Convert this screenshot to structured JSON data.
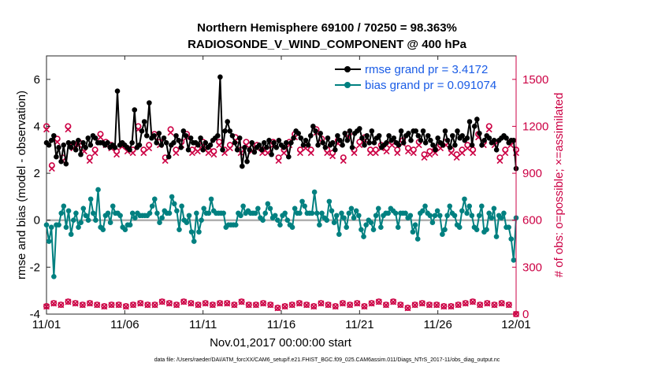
{
  "chart_data": {
    "type": "line",
    "title": "Northern Hemisphere 69100 / 70250 = 98.363%",
    "subtitle": "RADIOSONDE_V_WIND_COMPONENT @ 400 hPa",
    "xlabel": "Nov.01,2017 00:00:00 start",
    "ylabel_left": "rmse and bias (model - observation)",
    "ylabel_right": "# of obs: o=possible; ×=assimilated",
    "footnote": "data file: /Users/raeder/DAI/ATM_forcXX/CAM6_setup/f.e21.FHIST_BGC.f09_025.CAM6assim.011/Diags_NTrS_2017-11/obs_diag_output.nc",
    "xlim": [
      0,
      30
    ],
    "ylim_left": [
      -4,
      7
    ],
    "ylim_right": [
      0,
      1650
    ],
    "x_tick_positions": [
      0,
      5,
      10,
      15,
      20,
      25,
      30
    ],
    "x_tick_labels": [
      "11/01",
      "11/06",
      "11/11",
      "11/16",
      "11/21",
      "11/26",
      "12/01"
    ],
    "y_left_ticks": [
      -4,
      -2,
      0,
      2,
      4,
      6
    ],
    "y_right_ticks": [
      0,
      300,
      600,
      900,
      1200,
      1500
    ],
    "zero_line": 0,
    "legend": [
      {
        "label": "rmse grand pr = 3.4172",
        "color": "#000000"
      },
      {
        "label": "bias grand pr = 0.091074",
        "color": "#008080"
      }
    ],
    "colors": {
      "rmse": "#000000",
      "bias": "#008080",
      "obs": "#cc0044",
      "zero": "#b0b0b0",
      "legend_text": "#1a5ce6"
    },
    "series": [
      {
        "name": "rmse",
        "axis": "left",
        "values": [
          3.3,
          3.2,
          3.4,
          3.6,
          2.7,
          3.1,
          2.5,
          3.2,
          2.4,
          3.3,
          3.1,
          3.3,
          3.0,
          3.4,
          2.8,
          3.3,
          3.1,
          3.5,
          3.2,
          3.6,
          3.5,
          3.3,
          3.3,
          3.3,
          3.2,
          3.3,
          3.1,
          3.2,
          3.1,
          5.5,
          3.2,
          3.3,
          3.2,
          3.1,
          3.0,
          3.3,
          4.7,
          3.1,
          3.2,
          3.8,
          4.2,
          3.6,
          5.0,
          3.5,
          3.6,
          3.3,
          3.7,
          3.2,
          3.5,
          3.3,
          2.7,
          3.2,
          3.3,
          3.6,
          3.4,
          3.1,
          3.8,
          3.6,
          3.0,
          3.5,
          3.3,
          3.3,
          3.2,
          3.5,
          3.0,
          3.3,
          3.1,
          3.2,
          3.4,
          3.5,
          3.6,
          6.1,
          3.0,
          3.8,
          4.2,
          3.8,
          3.6,
          3.3,
          3.0,
          3.5,
          2.3,
          3.1,
          2.5,
          3.0,
          3.3,
          2.9,
          3.1,
          3.2,
          3.0,
          3.3,
          3.1,
          3.4,
          2.8,
          3.3,
          3.1,
          3.4,
          3.2,
          3.1,
          3.3,
          2.7,
          3.3,
          3.5,
          3.8,
          3.7,
          3.5,
          3.2,
          3.4,
          3.2,
          3.6,
          4.0,
          3.8,
          3.2,
          3.7,
          3.3,
          3.1,
          3.5,
          3.2,
          3.3,
          3.0,
          3.6,
          3.4,
          3.2,
          3.7,
          3.4,
          3.8,
          3.1,
          3.7,
          3.8,
          3.9,
          3.5,
          3.2,
          3.6,
          3.3,
          3.8,
          3.3,
          3.5,
          3.6,
          3.1,
          3.2,
          3.3,
          3.6,
          3.4,
          3.5,
          3.3,
          3.2,
          3.8,
          3.3,
          3.6,
          3.7,
          3.4,
          3.8,
          3.8,
          3.6,
          3.4,
          3.8,
          3.3,
          3.6,
          3.4,
          3.2,
          3.0,
          3.5,
          3.3,
          3.2,
          3.8,
          3.4,
          3.1,
          3.6,
          3.2,
          3.8,
          3.5,
          3.6,
          3.4,
          3.5,
          4.2,
          3.2,
          4.0,
          4.3,
          3.7,
          3.2,
          3.4,
          3.6,
          3.5,
          3.3,
          3.4,
          3.0,
          3.4,
          3.5,
          3.6,
          3.5,
          3.3,
          3.4,
          3.4,
          2.2
        ]
      },
      {
        "name": "bias",
        "axis": "left",
        "values": [
          -0.2,
          -0.9,
          -0.3,
          -2.4,
          -0.2,
          -0.2,
          0.3,
          0.6,
          -0.3,
          0.4,
          -0.6,
          0.0,
          0.3,
          -0.3,
          -0.1,
          0.5,
          0.2,
          0.0,
          0.9,
          0.3,
          0.0,
          1.3,
          -0.3,
          -0.4,
          0.2,
          0.3,
          -0.1,
          0.6,
          0.3,
          0.3,
          0.2,
          -0.3,
          -0.4,
          -0.2,
          -0.2,
          0.3,
          0.1,
          0.3,
          0.2,
          0.2,
          0.2,
          0.2,
          0.3,
          0.6,
          0.9,
          0.3,
          -0.1,
          0.1,
          0.4,
          0.3,
          0.3,
          1.0,
          0.7,
          0.4,
          -0.4,
          0.6,
          0.0,
          -0.1,
          0.2,
          -0.5,
          -0.9,
          0.3,
          -0.5,
          0.0,
          0.5,
          0.3,
          0.3,
          0.9,
          0.4,
          0.3,
          0.3,
          0.3,
          0.3,
          -0.3,
          -0.2,
          -0.2,
          -0.2,
          -0.2,
          0.3,
          0.2,
          0.6,
          0.3,
          0.4,
          0.3,
          0.3,
          0.3,
          0.5,
          0.1,
          0.0,
          0.3,
          0.7,
          0.5,
          0.1,
          0.2,
          0.0,
          -0.2,
          0.2,
          0.3,
          0.0,
          -0.2,
          -0.3,
          0.5,
          0.3,
          0.3,
          0.8,
          0.6,
          0.3,
          0.3,
          0.3,
          1.2,
          0.3,
          -0.2,
          0.3,
          0.1,
          0.0,
          0.8,
          0.4,
          -0.1,
          0.2,
          -0.6,
          0.3,
          0.1,
          -0.3,
          0.3,
          0.5,
          0.1,
          0.4,
          0.2,
          -0.4,
          -0.7,
          -0.2,
          0.0,
          -0.1,
          -0.4,
          0.2,
          0.5,
          -0.3,
          0.2,
          0.3,
          0.3,
          0.5,
          0.4,
          0.3,
          -0.3,
          0.3,
          0.3,
          0.3,
          0.1,
          0.2,
          -0.5,
          -0.2,
          -0.8,
          0.3,
          0.4,
          0.6,
          0.3,
          0.2,
          -0.1,
          0.2,
          0.4,
          0.2,
          -0.6,
          -0.4,
          0.2,
          0.6,
          0.3,
          0.2,
          -0.2,
          -0.3,
          0.4,
          0.9,
          0.3,
          0.6,
          0.2,
          -0.3,
          -0.4,
          0.2,
          0.6,
          -0.5,
          -0.4,
          0.3,
          0.1,
          0.5,
          -0.7,
          0.2,
          0.1,
          0.3,
          -0.3,
          -0.3,
          -0.8,
          -1.7,
          0.1
        ]
      },
      {
        "name": "obs possible",
        "axis": "right",
        "marker": "o",
        "values": [
          1200,
          950,
          1120,
          1000,
          1200,
          1080,
          1100,
          1060,
          1000,
          1050,
          1150,
          1100,
          1080,
          1040,
          1090,
          1060,
          1050,
          1200,
          1050,
          1080,
          1150,
          1100,
          1000,
          1180,
          1050,
          1100,
          1150,
          1050,
          1060,
          1100,
          1050,
          1040,
          1100,
          1050,
          1080,
          1130,
          1050,
          1100,
          1060,
          1080,
          1050,
          1050,
          1100,
          1000,
          1050,
          1100,
          1150,
          1050,
          1080,
          1050,
          1180,
          1120,
          1050,
          1030,
          1110,
          1000,
          1150,
          1050,
          1100,
          1130,
          1050,
          1050,
          1080,
          1060,
          1100,
          1050,
          1110,
          1060,
          1050,
          1100,
          1020,
          1040,
          1050,
          1080,
          1100,
          1050,
          1020,
          1050,
          1080,
          1050,
          1150,
          1100,
          1200,
          1100,
          1000,
          1050,
          1100,
          1050
        ]
      },
      {
        "name": "obs assimilated",
        "axis": "right",
        "marker": "x",
        "values": [
          1180,
          930,
          1100,
          980,
          1180,
          1060,
          1080,
          1040,
          980,
          1030,
          1130,
          1080,
          1060,
          1020,
          1070,
          1040,
          1030,
          1180,
          1030,
          1060,
          1130,
          1080,
          980,
          1160,
          1030,
          1080,
          1130,
          1030,
          1040,
          1080,
          1030,
          1020,
          1080,
          1030,
          1060,
          1110,
          1030,
          1080,
          1040,
          1060,
          1030,
          1030,
          1080,
          980,
          1030,
          1080,
          1130,
          1030,
          1060,
          1030,
          1160,
          1100,
          1030,
          1010,
          1090,
          980,
          1130,
          1030,
          1080,
          1110,
          1030,
          1030,
          1060,
          1040,
          1080,
          1030,
          1090,
          1040,
          1030,
          1080,
          1000,
          1020,
          1030,
          1060,
          1080,
          1030,
          1000,
          1030,
          1060,
          1030,
          1130,
          1080,
          1180,
          1080,
          980,
          1030,
          1080,
          1030
        ]
      },
      {
        "name": "obs possible (low)",
        "axis": "right",
        "marker": "o",
        "values": [
          50,
          70,
          60,
          80,
          70,
          60,
          70,
          60,
          50,
          60,
          60,
          50,
          60,
          70,
          60,
          60,
          80,
          70,
          60,
          80,
          70,
          60,
          70,
          60,
          70,
          70,
          60,
          80,
          60,
          60,
          70,
          60,
          40,
          50,
          60,
          70,
          60,
          50,
          70,
          60,
          50,
          70,
          60,
          70,
          50,
          70,
          80,
          60,
          80,
          60,
          40,
          60,
          70,
          60,
          60,
          50,
          50,
          60,
          70,
          80,
          60,
          70,
          60,
          70,
          60,
          0
        ]
      },
      {
        "name": "obs assimilated (low)",
        "axis": "right",
        "marker": "x",
        "values": [
          48,
          68,
          58,
          78,
          68,
          58,
          68,
          58,
          48,
          58,
          58,
          48,
          58,
          68,
          58,
          58,
          78,
          68,
          58,
          78,
          68,
          58,
          68,
          58,
          68,
          68,
          58,
          78,
          58,
          58,
          68,
          58,
          38,
          48,
          58,
          68,
          58,
          48,
          68,
          58,
          48,
          68,
          58,
          68,
          48,
          68,
          78,
          58,
          78,
          58,
          38,
          58,
          68,
          58,
          58,
          48,
          48,
          58,
          68,
          78,
          58,
          68,
          58,
          68,
          58,
          0
        ]
      }
    ]
  }
}
